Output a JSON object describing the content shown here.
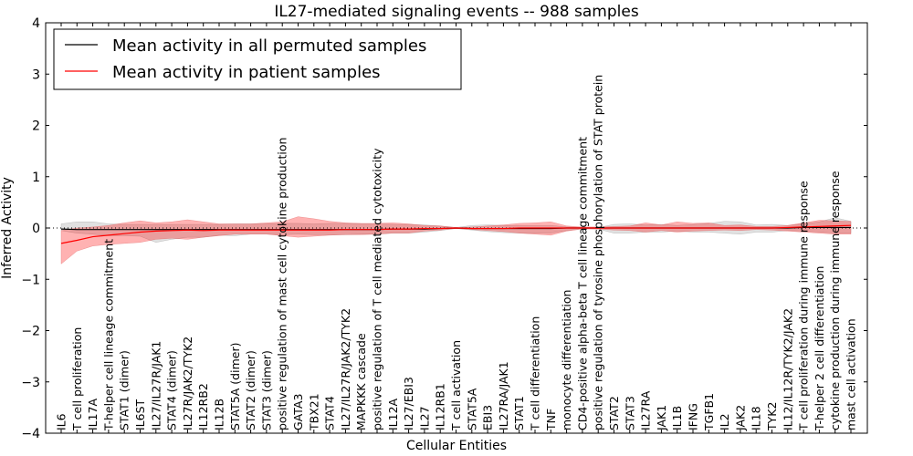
{
  "chart_data": {
    "type": "line",
    "title": "IL27-mediated signaling events -- 988 samples",
    "xlabel": "Cellular Entities",
    "ylabel": "Inferred Activity",
    "ylim": [
      -4,
      4
    ],
    "yticks": [
      -4,
      -3,
      -2,
      -1,
      0,
      1,
      2,
      3,
      4
    ],
    "ytick_labels": [
      "−4",
      "−3",
      "−2",
      "−1",
      "0",
      "1",
      "2",
      "3",
      "4"
    ],
    "legend_position": "top-left",
    "legend": [
      {
        "label": "Mean activity in all permuted samples",
        "color": "#000000"
      },
      {
        "label": "Mean activity in patient samples",
        "color": "#ff0000"
      }
    ],
    "categories": [
      "IL6",
      "T cell proliferation",
      "IL17A",
      "T-helper cell lineage commitment",
      "STAT1 (dimer)",
      "IL6ST",
      "IL27/IL27R/JAK1",
      "STAT4 (dimer)",
      "IL27R/JAK2/TYK2",
      "IL12RB2",
      "IL12B",
      "STAT5A (dimer)",
      "STAT2 (dimer)",
      "STAT3 (dimer)",
      "positive regulation of mast cell cytokine production",
      "GATA3",
      "TBX21",
      "STAT4",
      "IL27/IL27R/JAK2/TYK2",
      "MAPKKK cascade",
      "positive regulation of T cell mediated cytotoxicity",
      "IL12A",
      "IL27/EBI3",
      "IL27",
      "IL12RB1",
      "T cell activation",
      "STAT5A",
      "EBI3",
      "IL27RA/JAK1",
      "STAT1",
      "T cell differentiation",
      "TNF",
      "monocyte differentiation",
      "CD4-positive alpha-beta T cell lineage commitment",
      "positive regulation of tyrosine phosphorylation of STAT protein",
      "STAT2",
      "STAT3",
      "IL27RA",
      "JAK1",
      "IL1B",
      "IFNG",
      "TGFB1",
      "IL2",
      "JAK2",
      "IL18",
      "TYK2",
      "IL12/IL12R/TYK2/JAK2",
      "T cell proliferation during immune response",
      "T-helper 2 cell differentiation",
      "cytokine production during immune response",
      "mast cell activation"
    ],
    "series": [
      {
        "name": "Mean activity in all permuted samples",
        "color": "#000000",
        "values": [
          -0.02,
          -0.03,
          -0.03,
          -0.03,
          -0.03,
          -0.03,
          -0.03,
          -0.03,
          -0.03,
          -0.03,
          -0.03,
          -0.03,
          -0.03,
          -0.03,
          -0.03,
          -0.03,
          -0.03,
          -0.03,
          -0.03,
          -0.03,
          -0.03,
          -0.02,
          -0.02,
          -0.02,
          -0.01,
          0.0,
          -0.01,
          -0.01,
          -0.01,
          -0.01,
          -0.01,
          -0.01,
          0.0,
          0.0,
          0.0,
          0.0,
          0.0,
          0.0,
          0.0,
          0.0,
          0.0,
          0.0,
          0.0,
          0.0,
          0.0,
          0.0,
          0.0,
          0.01,
          0.01,
          0.01,
          0.01
        ],
        "band_upper": [
          0.08,
          0.12,
          0.12,
          0.08,
          0.07,
          0.07,
          0.07,
          0.07,
          0.07,
          0.07,
          0.07,
          0.08,
          0.08,
          0.08,
          0.09,
          0.09,
          0.08,
          0.09,
          0.09,
          0.08,
          0.08,
          0.07,
          0.07,
          0.06,
          0.04,
          0.01,
          0.05,
          0.06,
          0.05,
          0.05,
          0.05,
          0.05,
          0.02,
          0.01,
          0.01,
          0.07,
          0.08,
          0.06,
          0.07,
          0.05,
          0.07,
          0.09,
          0.13,
          0.12,
          0.06,
          0.07,
          0.05,
          0.08,
          0.12,
          0.2,
          0.13
        ],
        "band_lower": [
          -0.05,
          -0.1,
          -0.12,
          -0.15,
          -0.15,
          -0.16,
          -0.28,
          -0.22,
          -0.18,
          -0.18,
          -0.14,
          -0.15,
          -0.12,
          -0.12,
          -0.13,
          -0.12,
          -0.13,
          -0.13,
          -0.13,
          -0.12,
          -0.12,
          -0.1,
          -0.1,
          -0.08,
          -0.05,
          -0.01,
          -0.04,
          -0.07,
          -0.09,
          -0.1,
          -0.1,
          -0.1,
          -0.05,
          -0.01,
          -0.02,
          -0.1,
          -0.1,
          -0.08,
          -0.08,
          -0.06,
          -0.08,
          -0.08,
          -0.1,
          -0.12,
          -0.08,
          -0.08,
          -0.05,
          -0.06,
          -0.08,
          -0.1,
          -0.1
        ]
      },
      {
        "name": "Mean activity in patient samples",
        "color": "#ff0000",
        "values": [
          -0.3,
          -0.24,
          -0.17,
          -0.14,
          -0.11,
          -0.08,
          -0.06,
          -0.05,
          -0.04,
          -0.05,
          -0.04,
          -0.04,
          -0.04,
          -0.04,
          -0.04,
          -0.04,
          -0.04,
          -0.04,
          -0.03,
          -0.03,
          -0.03,
          -0.02,
          -0.02,
          -0.01,
          -0.01,
          0.0,
          -0.01,
          -0.01,
          -0.01,
          0.0,
          0.0,
          0.0,
          0.0,
          0.0,
          0.0,
          0.0,
          0.0,
          0.0,
          0.0,
          0.0,
          0.0,
          0.0,
          0.0,
          0.0,
          0.0,
          0.0,
          0.01,
          0.02,
          0.03,
          0.04,
          0.05
        ],
        "band_upper": [
          -0.05,
          0.0,
          0.02,
          0.05,
          0.1,
          0.14,
          0.1,
          0.12,
          0.16,
          0.12,
          0.08,
          0.08,
          0.08,
          0.1,
          0.12,
          0.22,
          0.18,
          0.13,
          0.1,
          0.09,
          0.09,
          0.1,
          0.08,
          0.05,
          0.04,
          0.01,
          0.02,
          0.04,
          0.06,
          0.09,
          0.1,
          0.12,
          0.04,
          0.02,
          0.02,
          0.03,
          0.04,
          0.1,
          0.06,
          0.12,
          0.09,
          0.1,
          0.05,
          0.06,
          0.03,
          0.03,
          0.05,
          0.1,
          0.15,
          0.14,
          0.13
        ],
        "band_lower": [
          -0.7,
          -0.45,
          -0.35,
          -0.32,
          -0.3,
          -0.28,
          -0.22,
          -0.2,
          -0.22,
          -0.18,
          -0.15,
          -0.12,
          -0.12,
          -0.12,
          -0.15,
          -0.18,
          -0.16,
          -0.14,
          -0.13,
          -0.13,
          -0.12,
          -0.1,
          -0.1,
          -0.06,
          -0.04,
          -0.01,
          -0.03,
          -0.05,
          -0.07,
          -0.1,
          -0.12,
          -0.14,
          -0.06,
          -0.02,
          -0.02,
          -0.04,
          -0.05,
          -0.08,
          -0.05,
          -0.08,
          -0.06,
          -0.05,
          -0.04,
          -0.05,
          -0.03,
          -0.04,
          -0.06,
          -0.08,
          -0.1,
          -0.12,
          -0.12
        ]
      }
    ]
  }
}
